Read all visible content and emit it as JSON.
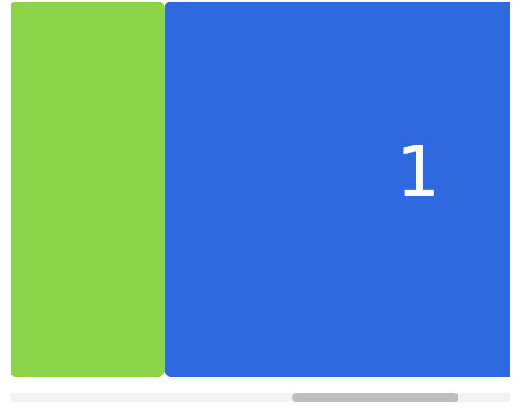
{
  "carousel": {
    "cards": [
      {
        "label": "",
        "color": "#8bd44a"
      },
      {
        "label": "1",
        "color": "#2f69e0"
      }
    ]
  },
  "scrollbar": {
    "track_color": "#f2f2f2",
    "thumb_color": "#bdbdbd",
    "position_fraction": 0.56
  }
}
